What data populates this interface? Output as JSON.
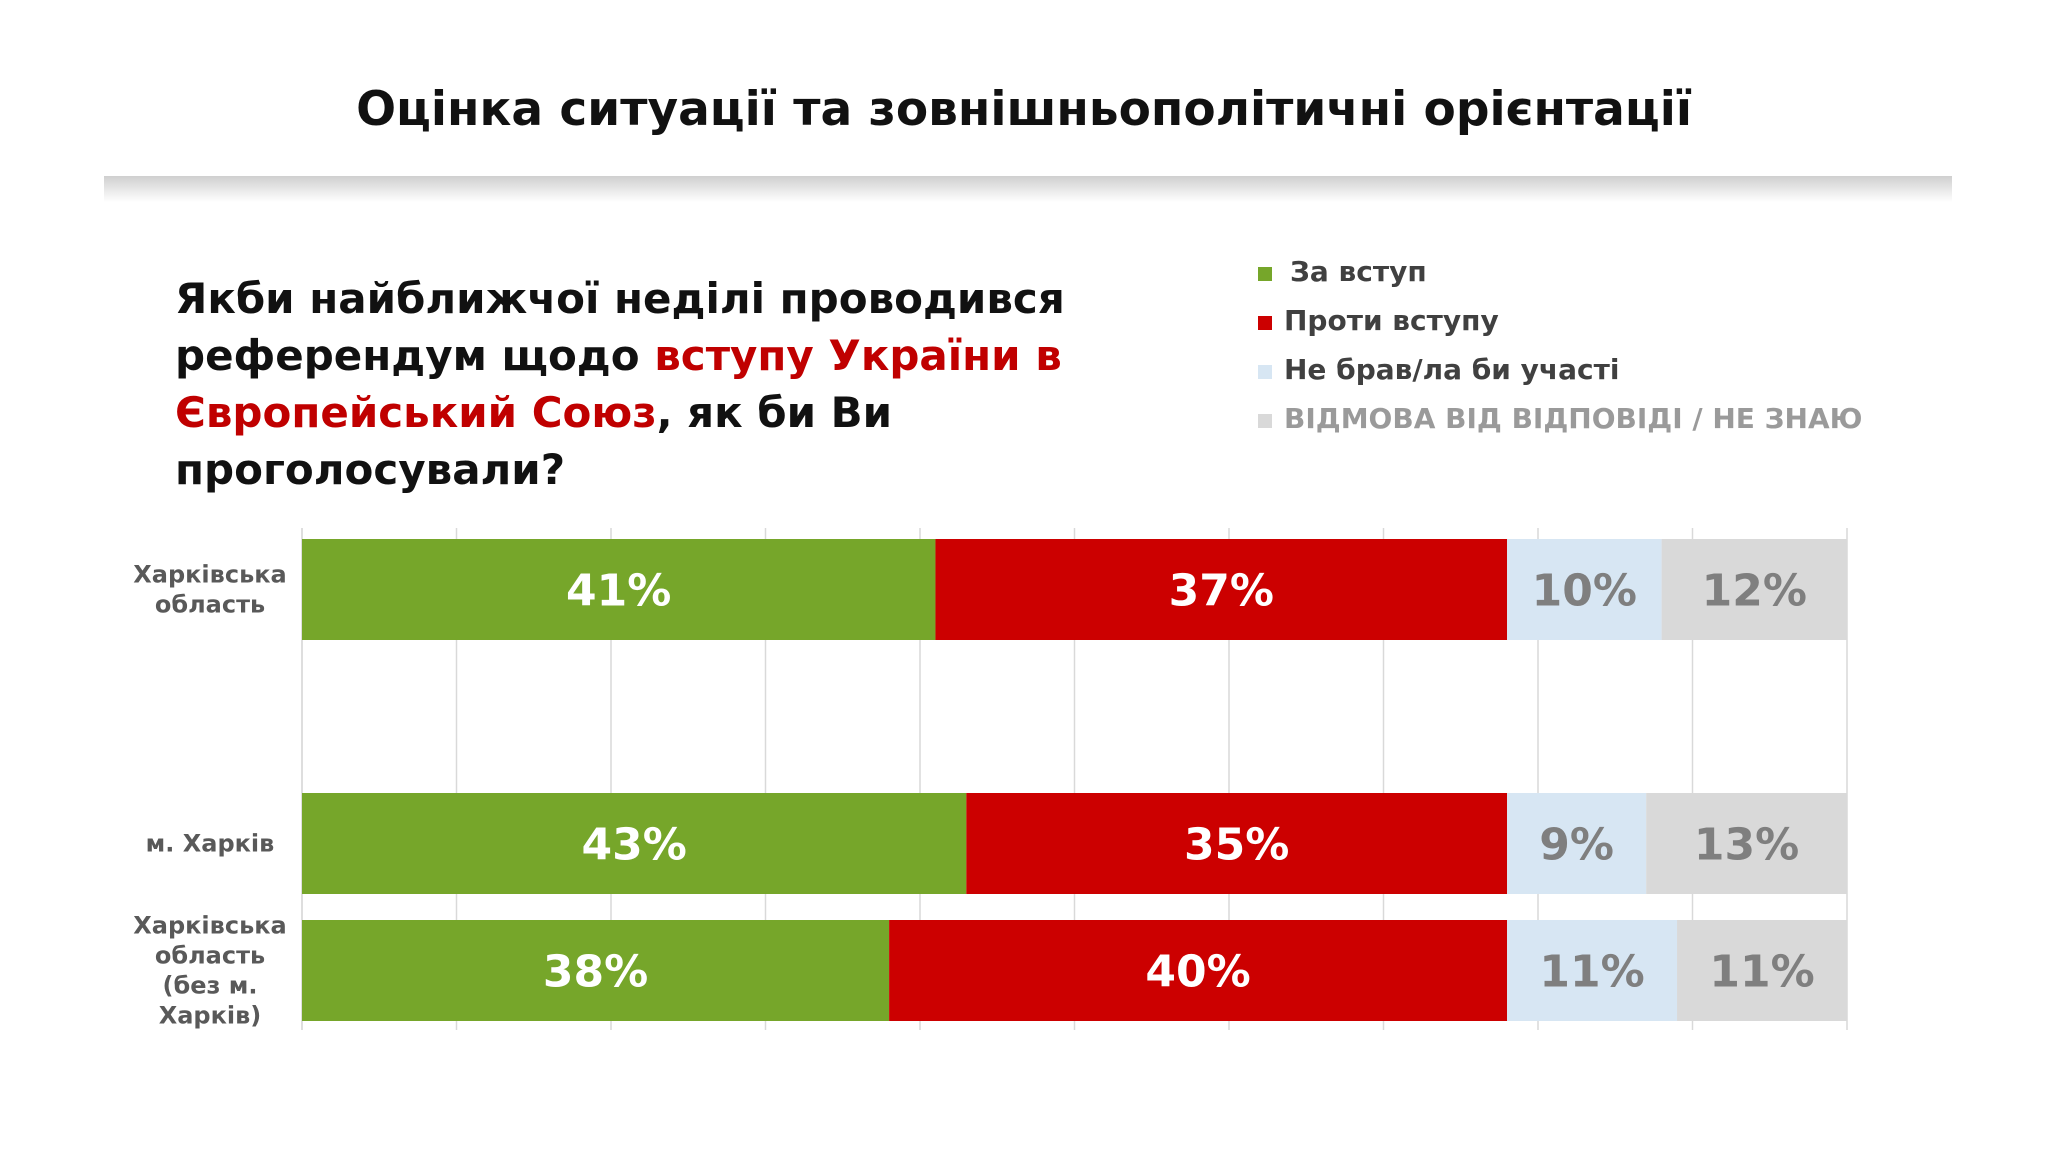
{
  "header": {
    "title": "Оцінка ситуації та зовнішньополітичні орієнтації"
  },
  "question": {
    "part1": "Якби найближчої неділі проводився референдум щодо ",
    "highlight": "вступу України в Європейський Союз",
    "part2": ", як би Ви проголосували?"
  },
  "colors": {
    "accent": "#c00000"
  },
  "chart_data": {
    "type": "bar",
    "orientation": "horizontal",
    "stacked": true,
    "categories": [
      "Харківська область",
      "м. Харків",
      "Харківська область (без м. Харків)"
    ],
    "series": [
      {
        "name": "За вступ",
        "color": "#76a62a",
        "label_color": "#ffffff",
        "values": [
          41,
          43,
          38
        ]
      },
      {
        "name": "Проти вступу",
        "color": "#cc0000",
        "label_color": "#ffffff",
        "values": [
          37,
          35,
          40
        ]
      },
      {
        "name": "Не брав/ла би участі",
        "color": "#d7e6f3",
        "label_color": "#7f7f7f",
        "values": [
          10,
          9,
          11
        ]
      },
      {
        "name": "ВІДМОВА ВІД ВІДПОВІДІ / НЕ ЗНАЮ",
        "color": "#d9d9d9",
        "label_color": "#7f7f7f",
        "values": [
          12,
          13,
          11
        ]
      }
    ],
    "data_labels": [
      [
        "41%",
        "43%",
        "38%"
      ],
      [
        "37%",
        "35%",
        "40%"
      ],
      [
        "10%",
        "9%",
        "11%"
      ],
      [
        "12%",
        "13%",
        "11%"
      ]
    ],
    "xlim": [
      0,
      100
    ],
    "grid": true,
    "legend_position": "top-right"
  }
}
